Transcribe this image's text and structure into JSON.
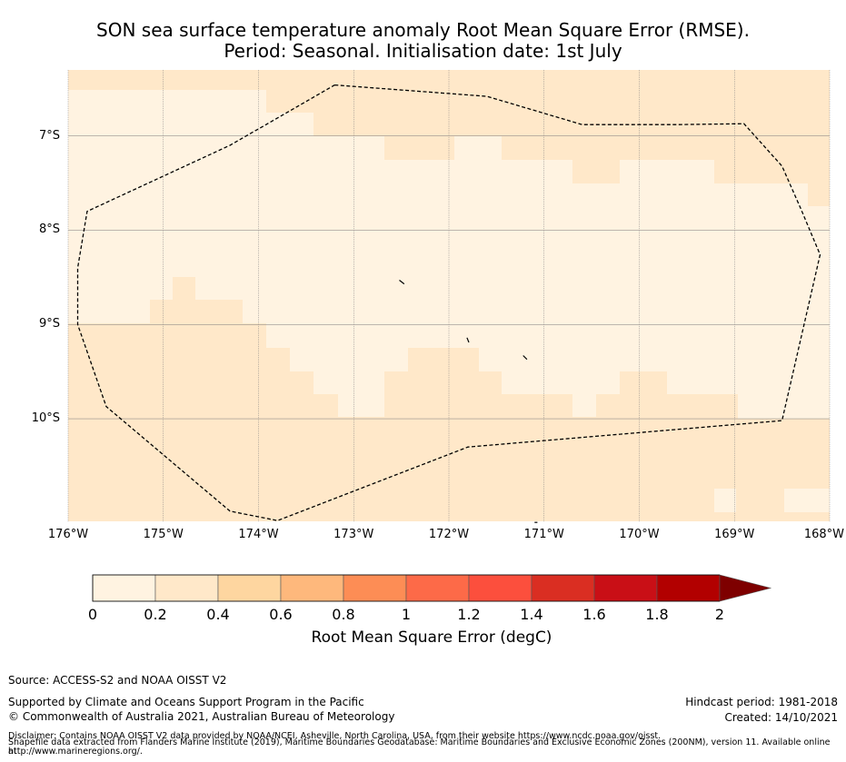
{
  "title_line1": "SON sea surface temperature anomaly Root Mean Square Error (RMSE).",
  "title_line2": "Period: Seasonal. Initialisation date: 1st July",
  "map": {
    "lon_range": [
      -176,
      -168
    ],
    "lat_range": [
      -11.1,
      -6.3
    ],
    "lon_ticks": [
      {
        "value": -176,
        "label": "176°W"
      },
      {
        "value": -175,
        "label": "175°W"
      },
      {
        "value": -174,
        "label": "174°W"
      },
      {
        "value": -173,
        "label": "173°W"
      },
      {
        "value": -172,
        "label": "172°W"
      },
      {
        "value": -171,
        "label": "171°W"
      },
      {
        "value": -170,
        "label": "170°W"
      },
      {
        "value": -169,
        "label": "169°W"
      },
      {
        "value": -168,
        "label": "168°W"
      }
    ],
    "lat_ticks": [
      {
        "value": -7,
        "label": "7°S"
      },
      {
        "value": -8,
        "label": "8°S"
      },
      {
        "value": -9,
        "label": "9°S"
      },
      {
        "value": -10,
        "label": "10°S"
      }
    ],
    "grid": true,
    "eez_boundary": [
      [
        -173.2,
        -6.46
      ],
      [
        -171.6,
        -6.58
      ],
      [
        -170.6,
        -6.88
      ],
      [
        -169.6,
        -6.88
      ],
      [
        -168.9,
        -6.87
      ],
      [
        -168.5,
        -7.32
      ],
      [
        -168.3,
        -7.78
      ],
      [
        -168.1,
        -8.26
      ],
      [
        -168.5,
        -10.02
      ],
      [
        -171.8,
        -10.3
      ],
      [
        -173.8,
        -11.08
      ],
      [
        -174.3,
        -10.98
      ],
      [
        -175.6,
        -9.87
      ],
      [
        -175.9,
        -9.0
      ],
      [
        -175.9,
        -8.4
      ],
      [
        -175.8,
        -7.8
      ],
      [
        -174.3,
        -7.1
      ],
      [
        -173.2,
        -6.46
      ]
    ],
    "islands": [
      [
        [
          -172.52,
          -8.53
        ],
        [
          -172.47,
          -8.57
        ]
      ],
      [
        [
          -171.81,
          -9.14
        ],
        [
          -171.79,
          -9.19
        ]
      ],
      [
        [
          -171.22,
          -9.33
        ],
        [
          -171.18,
          -9.37
        ]
      ],
      [
        [
          -171.1,
          -11.1
        ],
        [
          -171.07,
          -11.1
        ]
      ]
    ]
  },
  "colorbar": {
    "label": "Root Mean Square Error (degC)",
    "ticks": [
      "0",
      "0.2",
      "0.4",
      "0.6",
      "0.8",
      "1",
      "1.2",
      "1.4",
      "1.6",
      "1.8",
      "2"
    ],
    "colors": [
      "#fff3e1",
      "#ffe8c9",
      "#fed6a0",
      "#feb87c",
      "#fd8d55",
      "#fd6a48",
      "#fc4f3d",
      "#da2e22",
      "#c90f16",
      "#b20000",
      "#7e0000"
    ],
    "extend_color": "#7e0000"
  },
  "footer": {
    "source": "Source: ACCESS-S2 and NOAA OISST V2",
    "support": "Supported by Climate and Oceans Support Program in the Pacific",
    "copyright": "© Commonwealth of Australia 2021, Australian Bureau of Meteorology",
    "hindcast": "Hindcast period: 1981-2018",
    "created": "Created: 14/10/2021",
    "disclaimer1": "Disclaimer: Contains NOAA OISST V2 data provided by NOAA/NCEI, Asheville, North Carolina, USA, from their website https://www.ncdc.noaa.gov/oisst.",
    "disclaimer2": "Shapefile data extracted from Flanders Marine Institute (2019), Maritime Boundaries Geodatabase: Maritime Boundaries and Exclusive Economic Zones (200NM), version 11. Available online at",
    "disclaimer3": "http://www.marineregions.org/."
  }
}
